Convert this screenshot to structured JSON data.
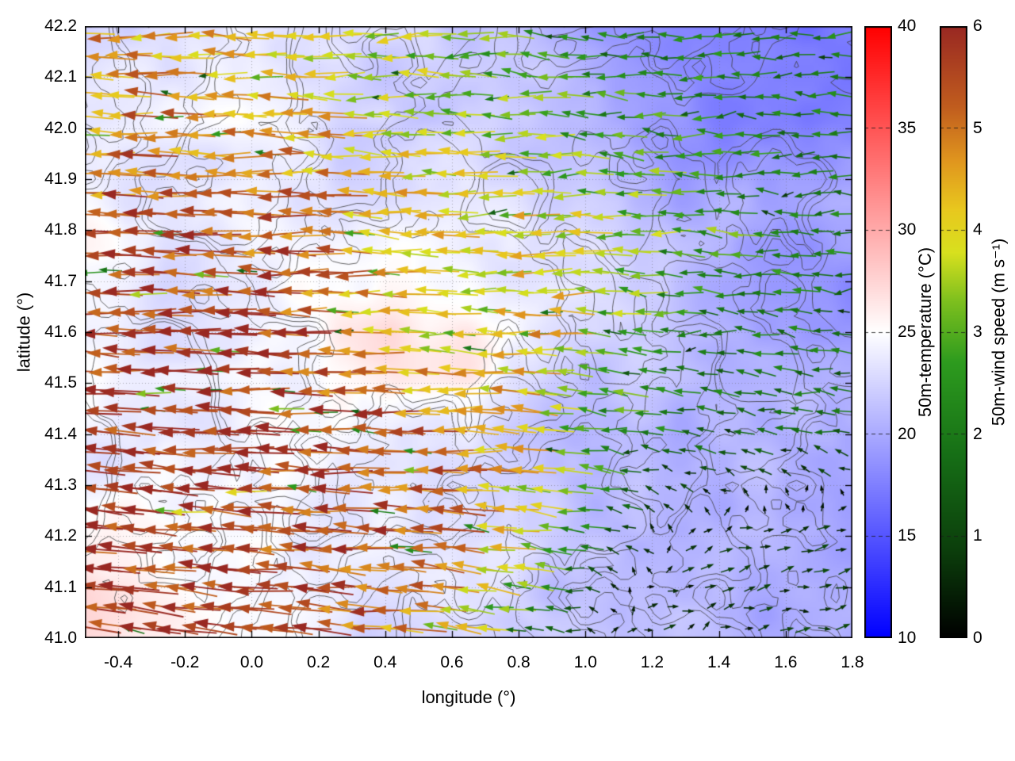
{
  "chart_data": {
    "type": "heatmap",
    "subtype": "temperature shading with wind-vector quiver and terrain contour lines",
    "xlabel": "longitude (°)",
    "ylabel": "latitude (°)",
    "xlim": [
      -0.5,
      1.8
    ],
    "ylim": [
      41.0,
      42.2
    ],
    "xticks": [
      -0.4,
      -0.2,
      0.0,
      0.2,
      0.4,
      0.6,
      0.8,
      1.0,
      1.2,
      1.4,
      1.6,
      1.8
    ],
    "xtick_labels": [
      "-0.4",
      "-0.2",
      "0.0",
      "0.2",
      "0.4",
      "0.6",
      "0.8",
      "1.0",
      "1.2",
      "1.4",
      "1.6",
      "1.8"
    ],
    "yticks": [
      41.0,
      41.1,
      41.2,
      41.3,
      41.4,
      41.5,
      41.6,
      41.7,
      41.8,
      41.9,
      42.0,
      42.1,
      42.2
    ],
    "ytick_labels": [
      "41.0",
      "41.1",
      "41.2",
      "41.3",
      "41.4",
      "41.5",
      "41.6",
      "41.7",
      "41.8",
      "41.9",
      "42.0",
      "42.1",
      "42.2"
    ],
    "grid": true,
    "contour_color": "#3c3c3c",
    "colorbars": [
      {
        "id": "temperature",
        "label": "50m-temperature (°C)",
        "range": [
          10,
          40
        ],
        "ticks": [
          10,
          15,
          20,
          25,
          30,
          35,
          40
        ],
        "tick_labels": [
          "10",
          "15",
          "20",
          "25",
          "30",
          "35",
          "40"
        ],
        "stops": [
          [
            0,
            "#0000ff"
          ],
          [
            0.5,
            "#ffffff"
          ],
          [
            1,
            "#ff0000"
          ]
        ]
      },
      {
        "id": "wind-speed",
        "label": "50m-wind speed (m s⁻¹)",
        "range": [
          0,
          6
        ],
        "ticks": [
          0,
          1,
          2,
          3,
          4,
          5,
          6
        ],
        "tick_labels": [
          "0",
          "1",
          "2",
          "3",
          "4",
          "5",
          "6"
        ],
        "stops": [
          [
            0,
            "#000000"
          ],
          [
            0.14,
            "#0b3d0b"
          ],
          [
            0.3,
            "#166f16"
          ],
          [
            0.45,
            "#2d9b1e"
          ],
          [
            0.55,
            "#7dbf1e"
          ],
          [
            0.63,
            "#d8e01e"
          ],
          [
            0.7,
            "#e8c81e"
          ],
          [
            0.78,
            "#e0961e"
          ],
          [
            0.87,
            "#c05c1e"
          ],
          [
            1,
            "#992822"
          ]
        ]
      }
    ],
    "temperature_grid": {
      "lon": [
        -0.5,
        -0.27,
        -0.04,
        0.19,
        0.42,
        0.65,
        0.88,
        1.11,
        1.34,
        1.57,
        1.8
      ],
      "lat": [
        42.2,
        42.0,
        41.8,
        41.6,
        41.4,
        41.2,
        41.0
      ],
      "values_c": [
        [
          23,
          23,
          24,
          23,
          22,
          21,
          21,
          19,
          18,
          17,
          17
        ],
        [
          24,
          24,
          24,
          23,
          22,
          22,
          21,
          20,
          19,
          18,
          18
        ],
        [
          25,
          24,
          24,
          24,
          25,
          24,
          23,
          22,
          20,
          19,
          19
        ],
        [
          24,
          23,
          24,
          25,
          27,
          26,
          24,
          22,
          20,
          20,
          20
        ],
        [
          24,
          25,
          24,
          24,
          24,
          23,
          22,
          21,
          20,
          20,
          21
        ],
        [
          26,
          26,
          25,
          24,
          23,
          22,
          22,
          21,
          21,
          21,
          21
        ],
        [
          27,
          26,
          25,
          24,
          23,
          23,
          22,
          21,
          21,
          21,
          21
        ]
      ]
    },
    "wind_grid": {
      "lon": [
        -0.5,
        -0.27,
        -0.04,
        0.19,
        0.42,
        0.65,
        0.88,
        1.11,
        1.34,
        1.57,
        1.8
      ],
      "lat": [
        42.2,
        42.0,
        41.8,
        41.6,
        41.4,
        41.2,
        41.0
      ],
      "u_ms": [
        [
          -4.5,
          -4.5,
          -4.0,
          -4.0,
          -3.5,
          -3.0,
          -2.5,
          -2.5,
          -2.0,
          -2.0,
          -2.0
        ],
        [
          -5.0,
          -5.0,
          -4.5,
          -4.5,
          -4.0,
          -3.5,
          -3.0,
          -2.5,
          -2.5,
          -2.0,
          -2.0
        ],
        [
          -5.8,
          -5.5,
          -5.5,
          -5.0,
          -4.5,
          -4.0,
          -4.0,
          -3.5,
          -3.0,
          -2.5,
          -2.0
        ],
        [
          -5.8,
          -5.8,
          -5.5,
          -5.5,
          -4.0,
          -3.5,
          -4.5,
          -3.0,
          -2.0,
          -2.0,
          -1.8
        ],
        [
          -5.8,
          -5.8,
          -5.8,
          -5.8,
          -5.5,
          -5.0,
          -4.0,
          -2.5,
          -1.8,
          -1.5,
          -1.5
        ],
        [
          -5.8,
          -5.8,
          -5.8,
          -5.5,
          -5.5,
          -5.0,
          -3.5,
          -1.0,
          0.5,
          0.8,
          0.8
        ],
        [
          -5.8,
          -5.8,
          -5.5,
          -5.5,
          -5.0,
          -4.0,
          -1.5,
          0.8,
          0.8,
          0.8,
          0.8
        ]
      ],
      "v_ms": [
        [
          0.0,
          0.0,
          0.3,
          0.0,
          -0.3,
          0.0,
          0.3,
          0.0,
          0.0,
          -0.3,
          0.0
        ],
        [
          0.3,
          0.0,
          0.0,
          0.3,
          0.0,
          0.0,
          0.0,
          0.3,
          0.0,
          0.0,
          0.0
        ],
        [
          0.0,
          0.3,
          0.0,
          0.0,
          0.3,
          0.0,
          -0.3,
          0.0,
          0.3,
          0.0,
          0.0
        ],
        [
          0.3,
          0.0,
          0.3,
          0.0,
          0.0,
          0.3,
          0.0,
          0.5,
          0.0,
          0.3,
          0.0
        ],
        [
          0.5,
          0.3,
          0.0,
          0.3,
          0.0,
          0.0,
          0.5,
          0.3,
          0.5,
          0.3,
          0.3
        ],
        [
          0.8,
          0.5,
          0.5,
          0.3,
          0.3,
          0.5,
          0.5,
          0.3,
          0.3,
          0.2,
          0.2
        ],
        [
          1.0,
          0.8,
          0.5,
          0.5,
          0.5,
          0.5,
          0.3,
          0.2,
          0.2,
          0.2,
          0.2
        ]
      ]
    }
  }
}
